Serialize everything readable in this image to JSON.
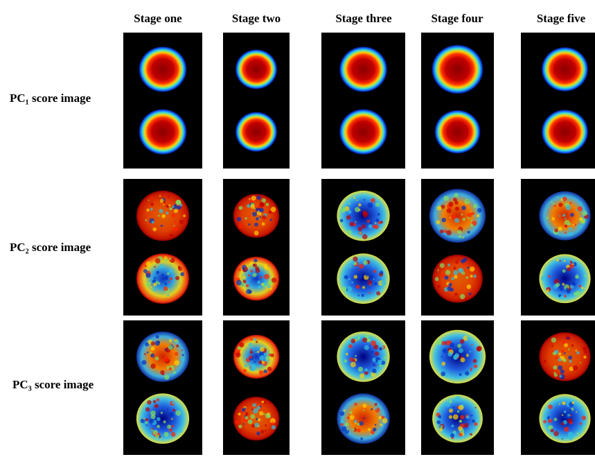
{
  "columns": [
    "Stage one",
    "Stage two",
    "Stage three",
    "Stage four",
    "Stage five"
  ],
  "rows": [
    "PC₁ score image",
    "PC₂ score image",
    "PC₃ score image"
  ]
}
